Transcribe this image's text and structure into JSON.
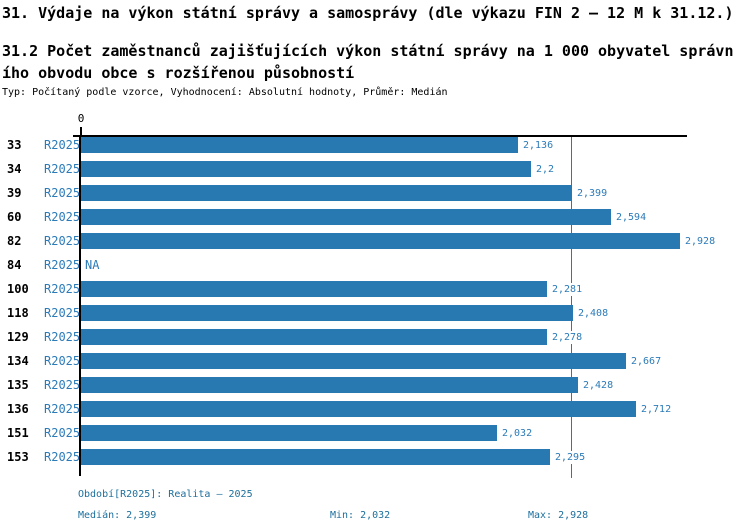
{
  "header": {
    "title": "31. Výdaje na výkon státní správy a samosprávy (dle výkazu FIN 2 – 12 M k 31.12.)",
    "subtitle": "31.2 Počet zaměstnanců zajišťujících výkon státní správy na 1 000 obyvatel správního obvodu obce s rozšířenou působností",
    "meta": "Typ: Počítaný podle vzorce, Vyhodnocení: Absolutní hodnoty, Průměr: Medián"
  },
  "chart_data": {
    "type": "bar",
    "orientation": "horizontal",
    "axis_zero_label": "0",
    "series_name": "R2025",
    "categories": [
      "33",
      "34",
      "39",
      "60",
      "82",
      "84",
      "100",
      "118",
      "129",
      "134",
      "135",
      "136",
      "151",
      "153"
    ],
    "values": [
      2.136,
      2.2,
      2.399,
      2.594,
      2.928,
      null,
      2.281,
      2.408,
      2.278,
      2.667,
      2.428,
      2.712,
      2.032,
      2.295
    ],
    "value_labels": [
      "2,136",
      "2,2",
      "2,399",
      "2,594",
      "2,928",
      "NA",
      "2,281",
      "2,408",
      "2,278",
      "2,667",
      "2,428",
      "2,712",
      "2,032",
      "2,295"
    ],
    "missing_label": "NA",
    "median_value": 2.399,
    "xlim": [
      0,
      2.96
    ],
    "grid": false,
    "legend_position": "none",
    "bar_color": "#2878b2",
    "median_line_color": "#2878b2",
    "label_color": "#2c7bb8"
  },
  "footer": {
    "period": "Období[R2025]: Realita – 2025",
    "median": "Medián: 2,399",
    "min": "Min: 2,032",
    "max": "Max: 2,928",
    "text_color": "#1d6f9c"
  }
}
